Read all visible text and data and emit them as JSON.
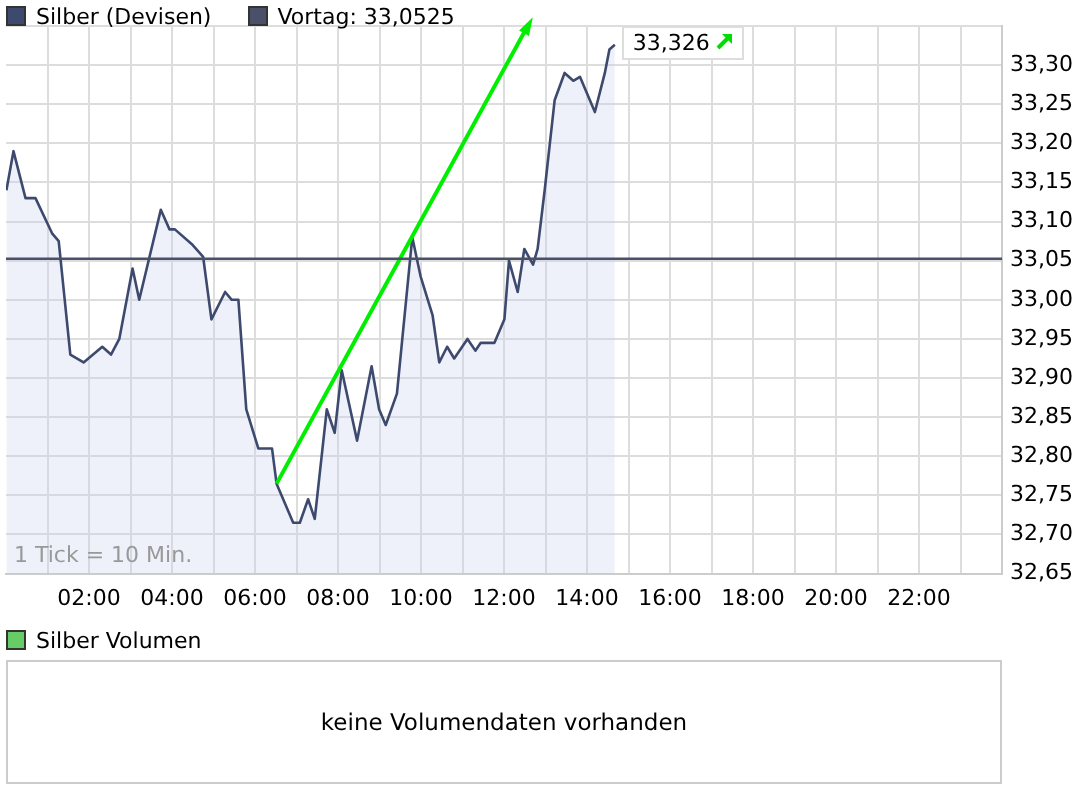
{
  "chart_data": [
    {
      "type": "area",
      "legend": "top left",
      "grid": true,
      "xlim": [
        0,
        24
      ],
      "ylim": [
        32.65,
        33.35
      ],
      "xticks": [
        {
          "value": 1,
          "label": null
        },
        {
          "value": 2,
          "label": "02:00"
        },
        {
          "value": 3,
          "label": null
        },
        {
          "value": 4,
          "label": "04:00"
        },
        {
          "value": 5,
          "label": null
        },
        {
          "value": 6,
          "label": "06:00"
        },
        {
          "value": 7,
          "label": null
        },
        {
          "value": 8,
          "label": "08:00"
        },
        {
          "value": 9,
          "label": null
        },
        {
          "value": 10,
          "label": "10:00"
        },
        {
          "value": 11,
          "label": null
        },
        {
          "value": 12,
          "label": "12:00"
        },
        {
          "value": 13,
          "label": null
        },
        {
          "value": 14,
          "label": "14:00"
        },
        {
          "value": 15,
          "label": null
        },
        {
          "value": 16,
          "label": "16:00"
        },
        {
          "value": 17,
          "label": null
        },
        {
          "value": 18,
          "label": "18:00"
        },
        {
          "value": 19,
          "label": null
        },
        {
          "value": 20,
          "label": "20:00"
        },
        {
          "value": 21,
          "label": null
        },
        {
          "value": 22,
          "label": "22:00"
        },
        {
          "value": 23,
          "label": null
        }
      ],
      "yticks": [
        {
          "value": 32.65,
          "label": "32,65"
        },
        {
          "value": 32.7,
          "label": "32,70"
        },
        {
          "value": 32.75,
          "label": "32,75"
        },
        {
          "value": 32.8,
          "label": "32,80"
        },
        {
          "value": 32.85,
          "label": "32,85"
        },
        {
          "value": 32.9,
          "label": "32,90"
        },
        {
          "value": 32.95,
          "label": "32,95"
        },
        {
          "value": 33.0,
          "label": "33,00"
        },
        {
          "value": 33.05,
          "label": "33,05"
        },
        {
          "value": 33.1,
          "label": "33,10"
        },
        {
          "value": 33.15,
          "label": "33,15"
        },
        {
          "value": 33.2,
          "label": "33,20"
        },
        {
          "value": 33.25,
          "label": "33,25"
        },
        {
          "value": 33.3,
          "label": "33,30"
        },
        {
          "value": 33.35,
          "label": null
        }
      ],
      "series": [
        {
          "name": "Silber (Devisen)",
          "type": "area",
          "color": "#3d4a6e",
          "x": [
            0.01,
            0.18,
            0.47,
            0.71,
            1.11,
            1.27,
            1.55,
            1.87,
            2.32,
            2.53,
            2.73,
            3.05,
            3.21,
            3.73,
            3.94,
            4.07,
            4.5,
            4.75,
            4.95,
            5.28,
            5.44,
            5.6,
            5.79,
            6.08,
            6.41,
            6.52,
            6.92,
            7.08,
            7.28,
            7.44,
            7.73,
            7.92,
            8.09,
            8.46,
            8.81,
            8.99,
            9.15,
            9.42,
            9.79,
            9.99,
            10.28,
            10.44,
            10.63,
            10.8,
            11.12,
            11.31,
            11.44,
            11.77,
            12.01,
            12.12,
            12.33,
            12.49,
            12.7,
            12.81,
            12.98,
            13.22,
            13.46,
            13.67,
            13.83,
            14.19,
            14.43,
            14.54,
            14.67
          ],
          "values": [
            33.14,
            33.19,
            33.13,
            33.13,
            33.085,
            33.075,
            32.93,
            32.92,
            32.94,
            32.93,
            32.95,
            33.04,
            33.0,
            33.115,
            33.09,
            33.09,
            33.07,
            33.055,
            32.975,
            33.01,
            33.0,
            33.0,
            32.86,
            32.81,
            32.81,
            32.765,
            32.715,
            32.715,
            32.745,
            32.72,
            32.86,
            32.83,
            32.91,
            32.82,
            32.915,
            32.86,
            32.84,
            32.88,
            33.08,
            33.03,
            32.98,
            32.92,
            32.94,
            32.925,
            32.95,
            32.935,
            32.945,
            32.945,
            32.975,
            33.05,
            33.01,
            33.065,
            33.045,
            33.065,
            33.14,
            33.255,
            33.29,
            33.28,
            33.285,
            33.24,
            33.29,
            33.32,
            33.326
          ]
        },
        {
          "type": "line",
          "color": "#00ee00",
          "x": [
            6.52,
            12.57
          ],
          "values": [
            32.765,
            33.35
          ]
        }
      ],
      "ref_lines": [
        {
          "axis": "y",
          "value": 33.0525,
          "label": "Vortag: 33,0525",
          "color": "#4a5068"
        }
      ],
      "annotations": [
        {
          "text": "33,326",
          "x": 14.67,
          "y": 33.326
        },
        "1 Tick = 10 Min."
      ]
    },
    {
      "type": "other",
      "legend": "top left",
      "series": [
        {
          "name": "Silber Volumen",
          "color": "#66cc66"
        }
      ],
      "annotations": [
        "keine Volumendaten vorhanden"
      ]
    }
  ]
}
